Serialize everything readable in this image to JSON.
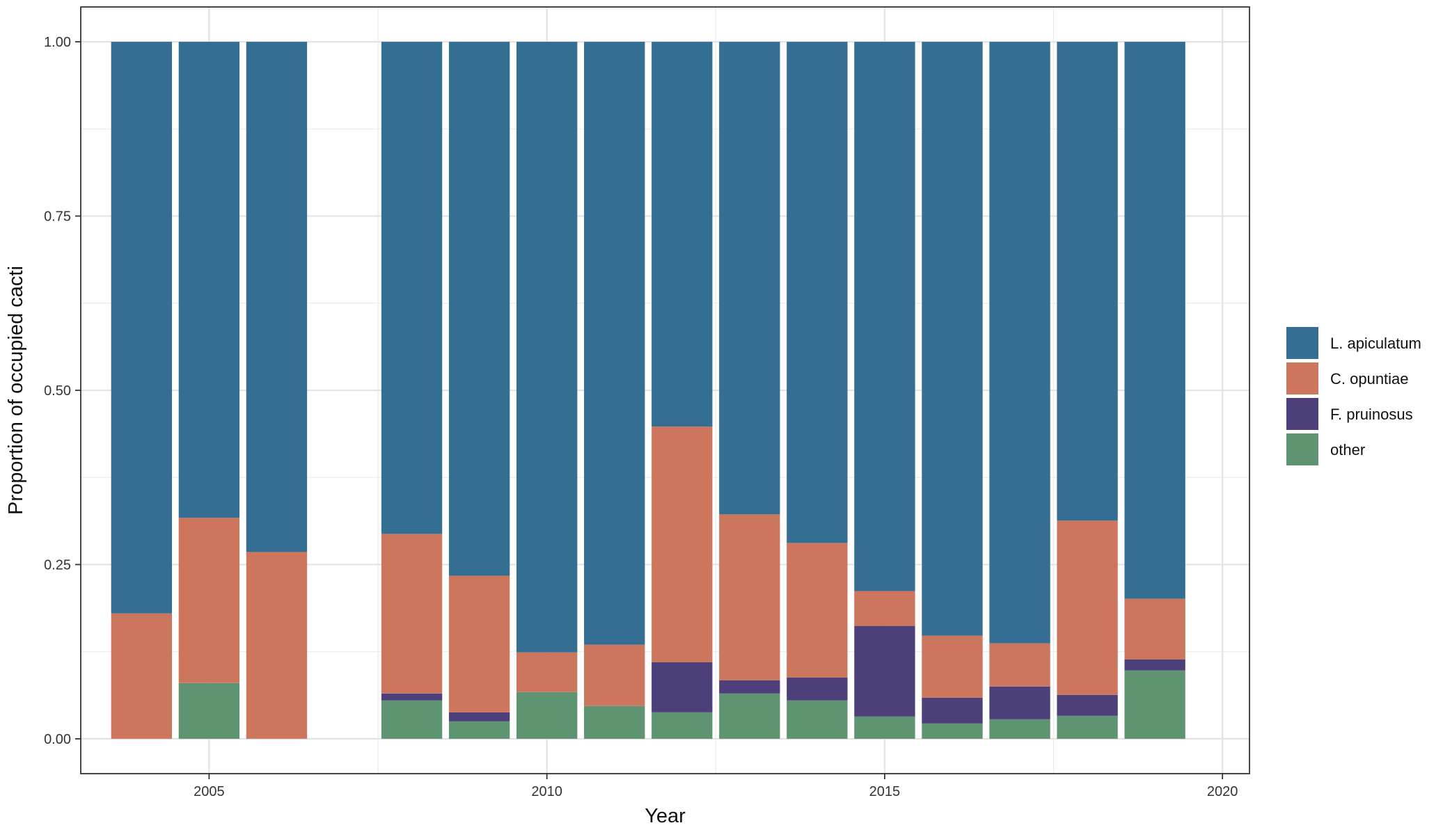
{
  "chart_data": {
    "type": "bar",
    "stacked": true,
    "xlabel": "Year",
    "ylabel": "Proportion of occupied cacti",
    "xlim": [
      2003.1,
      2020.4
    ],
    "ylim": [
      -0.05,
      1.05
    ],
    "x_ticks": [
      {
        "value": 2005,
        "label": "2005"
      },
      {
        "value": 2010,
        "label": "2010"
      },
      {
        "value": 2015,
        "label": "2015"
      },
      {
        "value": 2020,
        "label": "2020"
      }
    ],
    "y_ticks": [
      {
        "value": 0,
        "label": "0.00"
      },
      {
        "value": 0.25,
        "label": "0.25"
      },
      {
        "value": 0.5,
        "label": "0.50"
      },
      {
        "value": 0.75,
        "label": "0.75"
      },
      {
        "value": 1,
        "label": "1.00"
      }
    ],
    "grid": true,
    "legend_position": "right",
    "x": [
      2004,
      2005,
      2006,
      2008,
      2009,
      2010,
      2011,
      2012,
      2013,
      2014,
      2015,
      2016,
      2017,
      2018,
      2019
    ],
    "series": [
      {
        "name": "other",
        "color": "#5e9472",
        "values": [
          0,
          0.08,
          0,
          0.055,
          0.025,
          0.067,
          0.047,
          0.038,
          0.065,
          0.055,
          0.032,
          0.022,
          0.028,
          0.033,
          0.098
        ]
      },
      {
        "name": "F. pruinosus",
        "color": "#4c3f7a",
        "values": [
          0,
          0,
          0,
          0.01,
          0.013,
          0,
          0,
          0.072,
          0.019,
          0.033,
          0.13,
          0.037,
          0.047,
          0.03,
          0.016
        ]
      },
      {
        "name": "C. opuntiae",
        "color": "#cc765d",
        "values": [
          0.18,
          0.237,
          0.268,
          0.229,
          0.196,
          0.057,
          0.088,
          0.338,
          0.238,
          0.193,
          0.05,
          0.089,
          0.062,
          0.25,
          0.087
        ]
      },
      {
        "name": "L. apiculatum",
        "color": "#356e93",
        "values": [
          0.82,
          0.683,
          0.732,
          0.706,
          0.766,
          0.876,
          0.865,
          0.552,
          0.678,
          0.719,
          0.788,
          0.852,
          0.863,
          0.687,
          0.799
        ]
      }
    ],
    "legend_order": [
      "L. apiculatum",
      "C. opuntiae",
      "F. pruinosus",
      "other"
    ]
  }
}
